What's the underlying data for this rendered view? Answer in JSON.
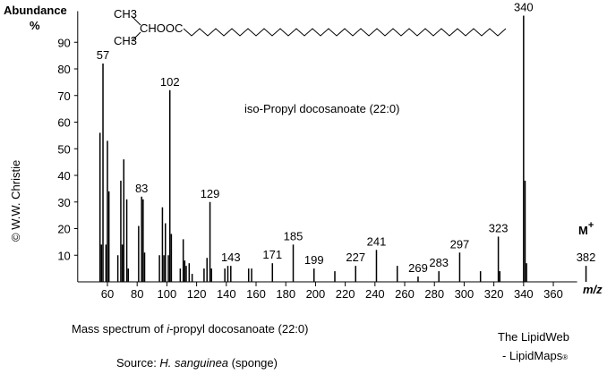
{
  "chart_data": {
    "type": "bar",
    "title": "iso-Propyl docosanoate  (22:0)",
    "y_label_1": "Abundance",
    "y_label_2": "%",
    "x_label": "m/z",
    "ion_label": "M",
    "ion_charge": "+",
    "structure": {
      "top": "CH3",
      "middle": "CHOOC",
      "bottom": "CH3"
    },
    "color": "#000000",
    "title_color": "#0000cc",
    "labeled_peaks": {
      "x": [
        57,
        83,
        102,
        129,
        143,
        171,
        185,
        199,
        227,
        241,
        269,
        283,
        297,
        323,
        340,
        382
      ],
      "values": [
        82,
        32,
        72,
        30,
        6,
        7,
        14,
        5,
        6,
        12,
        2,
        4,
        11,
        17,
        100,
        6
      ]
    },
    "other_peaks": {
      "x": [
        55,
        56,
        59,
        60,
        61,
        67,
        69,
        70,
        71,
        73,
        74,
        81,
        84,
        85,
        95,
        97,
        98,
        99,
        101,
        103,
        109,
        111,
        112,
        113,
        115,
        117,
        125,
        127,
        130,
        139,
        141,
        155,
        157,
        213,
        255,
        311,
        324,
        341,
        342
      ],
      "values": [
        56,
        14,
        14,
        53,
        34,
        10,
        38,
        14,
        46,
        31,
        5,
        21,
        31,
        11,
        10,
        28,
        10,
        22,
        10,
        18,
        5,
        16,
        8,
        6,
        7,
        3,
        5,
        9,
        5,
        5,
        6,
        5,
        5,
        4,
        6,
        4,
        4,
        38,
        7
      ]
    },
    "xlim": [
      40,
      376
    ],
    "ylim": [
      0,
      100
    ],
    "xticks": [
      60,
      80,
      100,
      120,
      140,
      160,
      180,
      200,
      220,
      240,
      260,
      280,
      300,
      320,
      340,
      360
    ],
    "yticks": [
      10,
      20,
      30,
      40,
      50,
      60,
      70,
      80,
      90
    ]
  },
  "caption": {
    "before": "Mass spectrum of ",
    "italic": "i",
    "after": "-propyl docosanoate (22:0)"
  },
  "source": {
    "label": "Source: ",
    "species": "H. sanguinea",
    "note": " (sponge)"
  },
  "brand": {
    "line1": "The LipidWeb",
    "line2": "- LipidMaps",
    "mark": "®"
  },
  "copyright": "© W.W. Christie"
}
